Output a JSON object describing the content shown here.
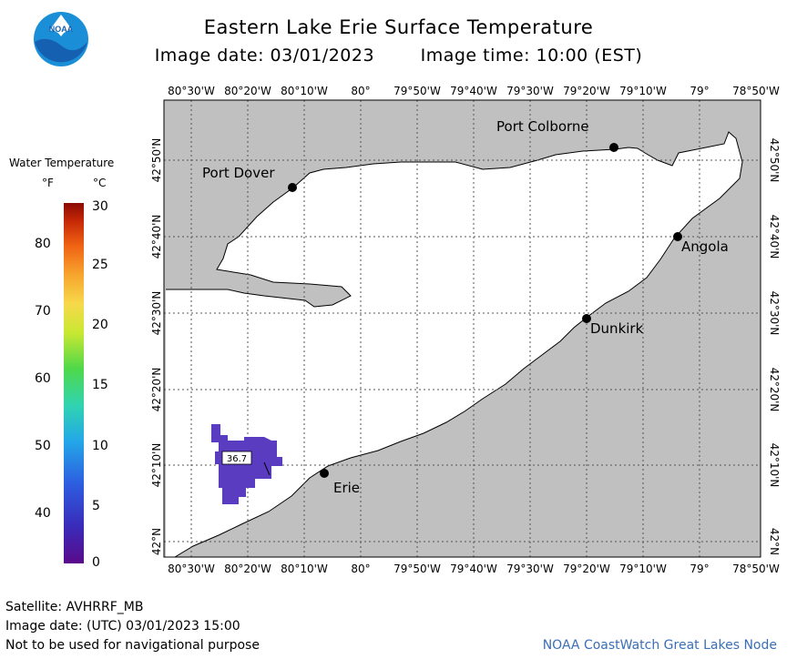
{
  "header": {
    "title": "Eastern Lake Erie Surface Temperature",
    "image_date": "Image date: 03/01/2023",
    "image_time": "Image time: 10:00 (EST)"
  },
  "logo": {
    "text": "NOAA",
    "icon": "noaa-logo-icon",
    "color": "#1a8fd8"
  },
  "legend": {
    "title": "Water Temperature",
    "unit_f": "°F",
    "unit_c": "°C",
    "ticks_f": [
      "80",
      "70",
      "60",
      "50",
      "40"
    ],
    "ticks_c": [
      "30",
      "25",
      "20",
      "15",
      "10",
      "5",
      "0"
    ]
  },
  "map": {
    "lon_labels": [
      "80°30'W",
      "80°20'W",
      "80°10'W",
      "80°",
      "79°50'W",
      "79°40'W",
      "79°30'W",
      "79°20'W",
      "79°10'W",
      "79°",
      "78°50'W"
    ],
    "lat_labels": [
      "42°50'N",
      "42°40'N",
      "42°30'N",
      "42°20'N",
      "42°10'N",
      "42°N"
    ],
    "places": [
      "Port Colborne",
      "Port Dover",
      "Angola",
      "Dunkirk",
      "Erie"
    ],
    "buoy_reading": "36.7",
    "land_color": "#c0c0c0",
    "water_color": "#ffffff",
    "anomaly_color": "#5a3cc0"
  },
  "footer": {
    "satellite": "Satellite: AVHRRF_MB",
    "utc_date": "Image date: (UTC) 03/01/2023  15:00",
    "disclaimer": "Not to be used for navigational purpose",
    "credit": "NOAA CoastWatch Great Lakes Node",
    "credit_color": "#3a6fb8"
  }
}
